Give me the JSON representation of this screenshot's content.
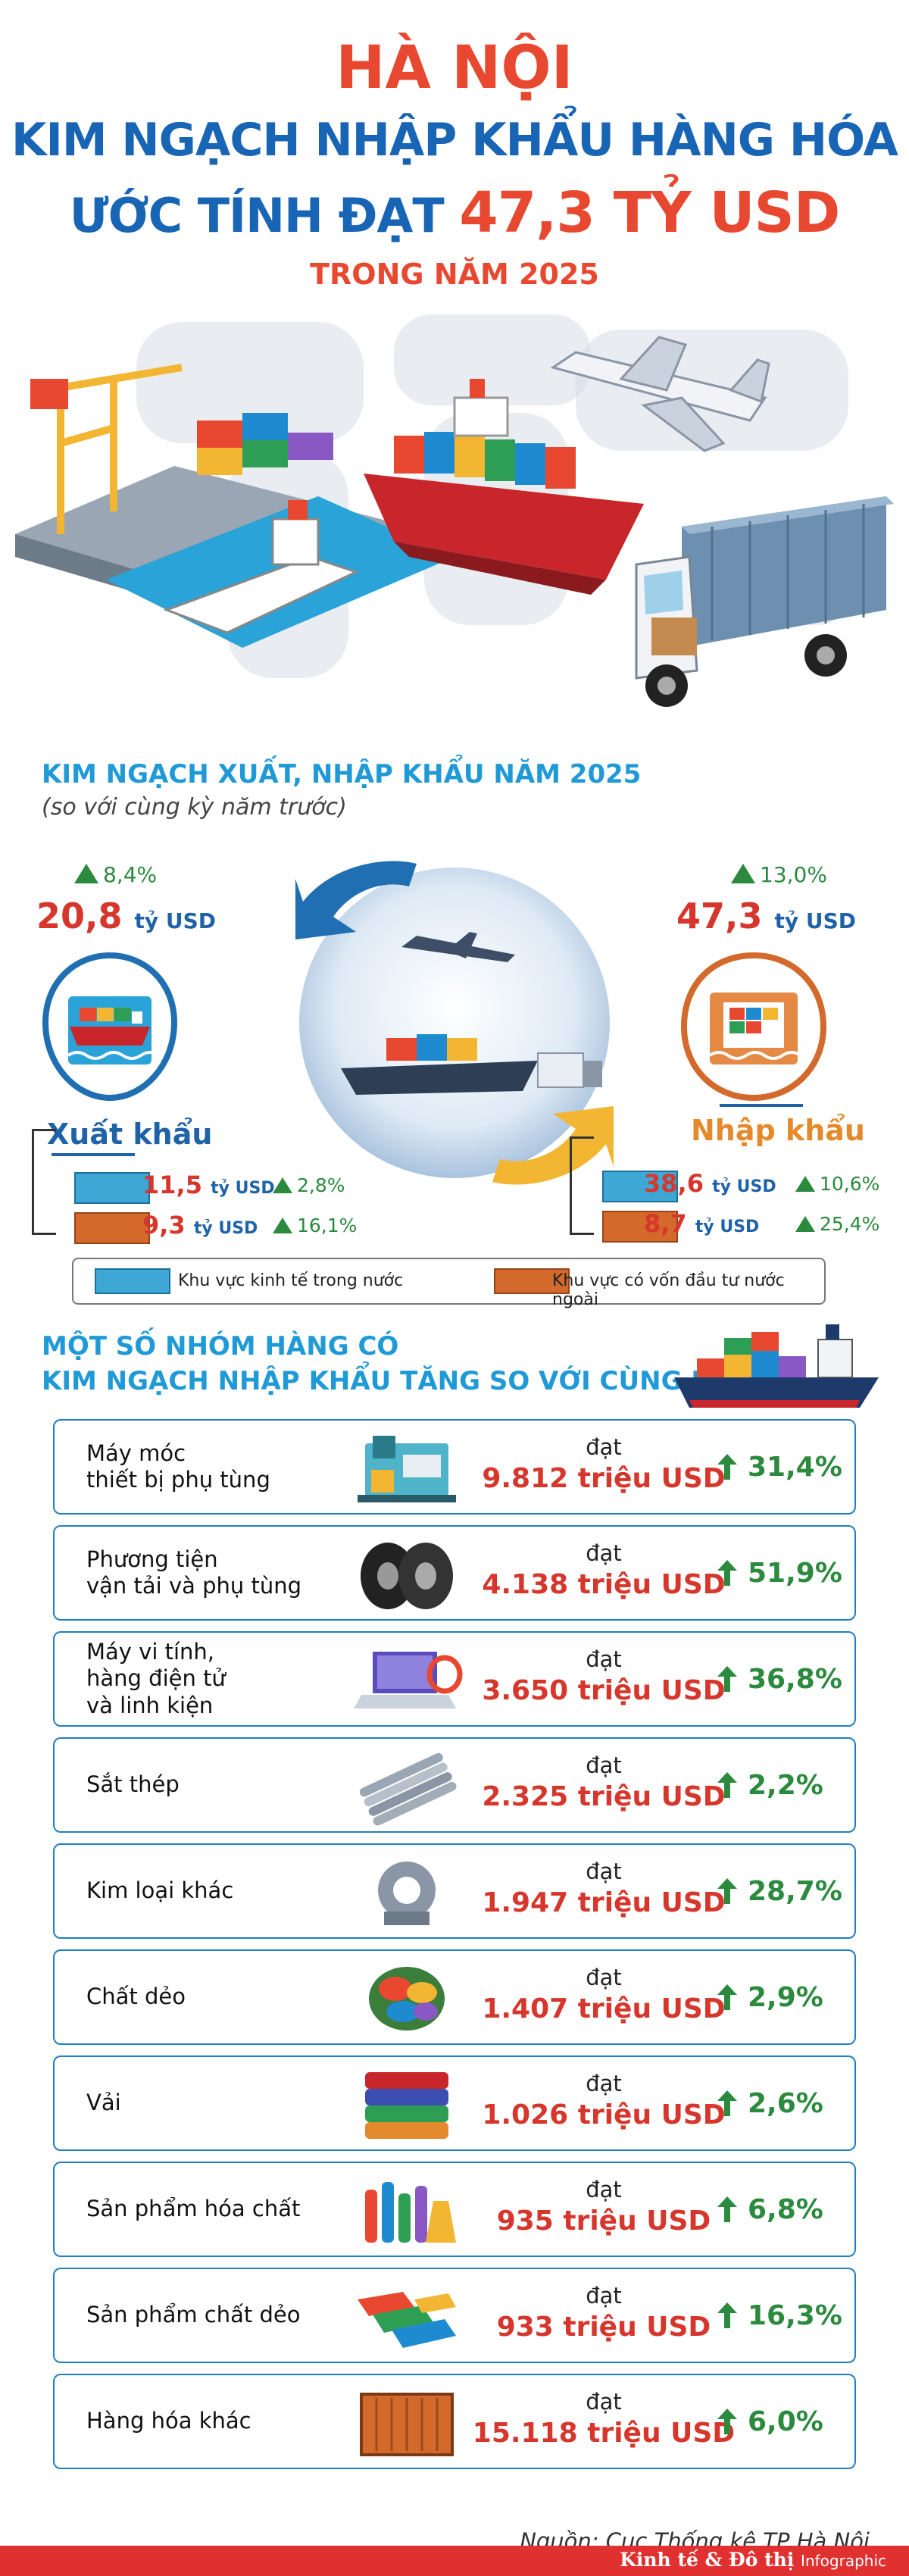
{
  "header": {
    "title_1": "HÀ NỘI",
    "title_2": "KIM NGẠCH NHẬP KHẨU HÀNG HÓA",
    "title_3_prefix": "ƯỚC TÍNH ĐẠT ",
    "title_3_value": "47,3 TỶ USD",
    "title_4": "TRONG NĂM 2025"
  },
  "summary": {
    "title": "KIM NGẠCH XUẤT, NHẬP KHẨU NĂM 2025",
    "subtitle": "(so với cùng kỳ năm trước)",
    "export": {
      "label": "Xuất khẩu",
      "growth": "8,4%",
      "value": "20,8",
      "unit": "tỷ USD",
      "domestic_value": "11,5",
      "domestic_unit": "tỷ USD",
      "domestic_growth": "2,8%",
      "fdi_value": "9,3",
      "fdi_unit": "tỷ USD",
      "fdi_growth": "16,1%"
    },
    "import": {
      "label": "Nhập khẩu",
      "growth": "13,0%",
      "value": "47,3",
      "unit": "tỷ USD",
      "domestic_value": "38,6",
      "domestic_unit": "tỷ USD",
      "domestic_growth": "10,6%",
      "fdi_value": "8,7",
      "fdi_unit": "tỷ USD",
      "fdi_growth": "25,4%"
    },
    "legend": {
      "domestic": "Khu vực kinh tế trong nước",
      "fdi": "Khu vực có vốn đầu tư nước ngoài"
    },
    "colors": {
      "domestic": "#3fa7d6",
      "fdi": "#d36a2c"
    }
  },
  "groups": {
    "title_1": "MỘT SỐ NHÓM HÀNG CÓ",
    "title_2": "KIM NGẠCH NHẬP KHẨU TĂNG SO VỚI CÙNG KỲ",
    "reach_label": "đạt",
    "items": [
      {
        "name_1": "Máy móc",
        "name_2": "thiết bị phụ tùng",
        "name_3": "",
        "value": "9.812 triệu USD",
        "growth": "31,4%",
        "icon": "machinery-icon"
      },
      {
        "name_1": "Phương tiện",
        "name_2": "vận tải và phụ tùng",
        "name_3": "",
        "value": "4.138 triệu USD",
        "growth": "51,9%",
        "icon": "tires-icon"
      },
      {
        "name_1": "Máy vi tính,",
        "name_2": "hàng điện tử",
        "name_3": "và linh kiện",
        "value": "3.650 triệu USD",
        "growth": "36,8%",
        "icon": "laptop-icon"
      },
      {
        "name_1": "Sắt thép",
        "name_2": "",
        "name_3": "",
        "value": "2.325 triệu USD",
        "growth": "2,2%",
        "icon": "steel-bars-icon"
      },
      {
        "name_1": "Kim loại khác",
        "name_2": "",
        "name_3": "",
        "value": "1.947 triệu USD",
        "growth": "28,7%",
        "icon": "metal-part-icon"
      },
      {
        "name_1": "Chất dẻo",
        "name_2": "",
        "name_3": "",
        "value": "1.407 triệu USD",
        "growth": "2,9%",
        "icon": "plastic-pellets-icon"
      },
      {
        "name_1": "Vải",
        "name_2": "",
        "name_3": "",
        "value": "1.026 triệu USD",
        "growth": "2,6%",
        "icon": "fabric-icon"
      },
      {
        "name_1": "Sản phẩm hóa chất",
        "name_2": "",
        "name_3": "",
        "value": "935 triệu USD",
        "growth": "6,8%",
        "icon": "chemicals-icon"
      },
      {
        "name_1": "Sản phẩm chất dẻo",
        "name_2": "",
        "name_3": "",
        "value": "933 triệu USD",
        "growth": "16,3%",
        "icon": "plastic-products-icon"
      },
      {
        "name_1": "Hàng hóa khác",
        "name_2": "",
        "name_3": "",
        "value": "15.118 triệu USD",
        "growth": "6,0%",
        "icon": "container-icon"
      }
    ]
  },
  "source": "Nguồn: Cục Thống kê TP Hà Nội",
  "brand": {
    "name": "Kinh tế & Đô thị",
    "suffix": "Infographic"
  }
}
